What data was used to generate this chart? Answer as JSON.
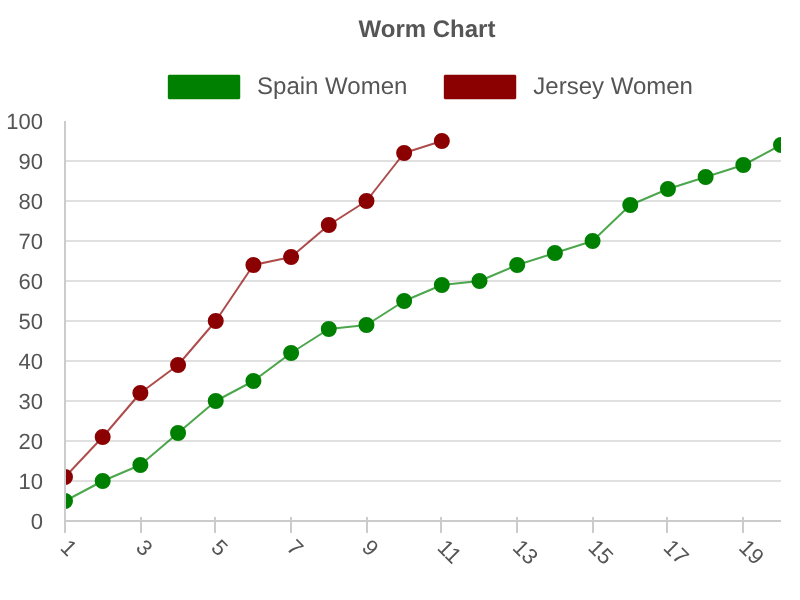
{
  "chart_data": {
    "type": "line",
    "title": "Worm Chart",
    "x": [
      1,
      2,
      3,
      4,
      5,
      6,
      7,
      8,
      9,
      10,
      11,
      12,
      13,
      14,
      15,
      16,
      17,
      18,
      19,
      20
    ],
    "series": [
      {
        "name": "Spain Women",
        "color": "#008000",
        "values": [
          5,
          10,
          14,
          22,
          30,
          35,
          42,
          48,
          49,
          55,
          59,
          60,
          64,
          67,
          70,
          79,
          83,
          86,
          89,
          94
        ]
      },
      {
        "name": "Jersey Women",
        "color": "#8b0000",
        "x": [
          1,
          2,
          3,
          4,
          5,
          6,
          7,
          8,
          9,
          10,
          11
        ],
        "values": [
          11,
          21,
          32,
          39,
          50,
          64,
          66,
          74,
          80,
          92,
          95
        ]
      }
    ],
    "xlim": [
      1,
      20
    ],
    "xticks": [
      1,
      3,
      5,
      7,
      9,
      11,
      13,
      15,
      17,
      19
    ],
    "ylim": [
      0,
      100
    ],
    "yticks": [
      0,
      10,
      20,
      30,
      40,
      50,
      60,
      70,
      80,
      90,
      100
    ],
    "grid": "y",
    "legend": "top",
    "marker": "circle",
    "line_style": "solid"
  }
}
